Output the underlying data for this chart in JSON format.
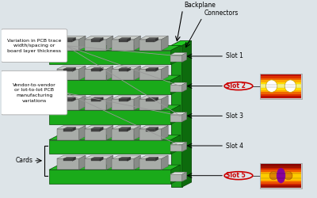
{
  "bg_color": "#dde4e8",
  "backplane_green_front": "#1a9a1a",
  "backplane_green_top": "#22cc22",
  "backplane_green_side": "#0d6b0d",
  "card_green_front": "#1aaa1a",
  "card_green_top": "#25bb25",
  "card_green_side": "#0f7a0f",
  "card_green_edge": "#0a550a",
  "gray_top": "#c8ccc8",
  "gray_front": "#a8aca8",
  "gray_side": "#888c88",
  "connector_color": "#b0b4b0",
  "labels": {
    "backplane": "Backplane",
    "connectors": "Connectors",
    "slots": [
      "Slot 1",
      "Slot 2",
      "Slot 3",
      "Slot 4",
      "Slot 5"
    ],
    "cards": "Cards",
    "variation": "Variation in PCB trace\nwidth/spacing or\nboard layer thickness",
    "vendor": "Vendor-to-vendor\nor lot-to-lot PCB\nmanufacturing\nvariations"
  },
  "highlighted_slots": [
    1,
    4
  ],
  "highlight_color": "#cc0000",
  "eye1_colors": [
    "#cc2200",
    "#dd4400",
    "#ee8800",
    "#ffcc00",
    "#ffee44",
    "#ffffff",
    "#ffee44",
    "#ffcc00",
    "#ee8800",
    "#dd4400",
    "#cc2200"
  ],
  "eye2_colors": [
    "#aa1100",
    "#cc3300",
    "#ee6600",
    "#ffaa00",
    "#ffcc00",
    "#ffcc00",
    "#ffaa00",
    "#ee6600",
    "#cc3300",
    "#aa1100"
  ],
  "eye_border": "#bbbbbb"
}
